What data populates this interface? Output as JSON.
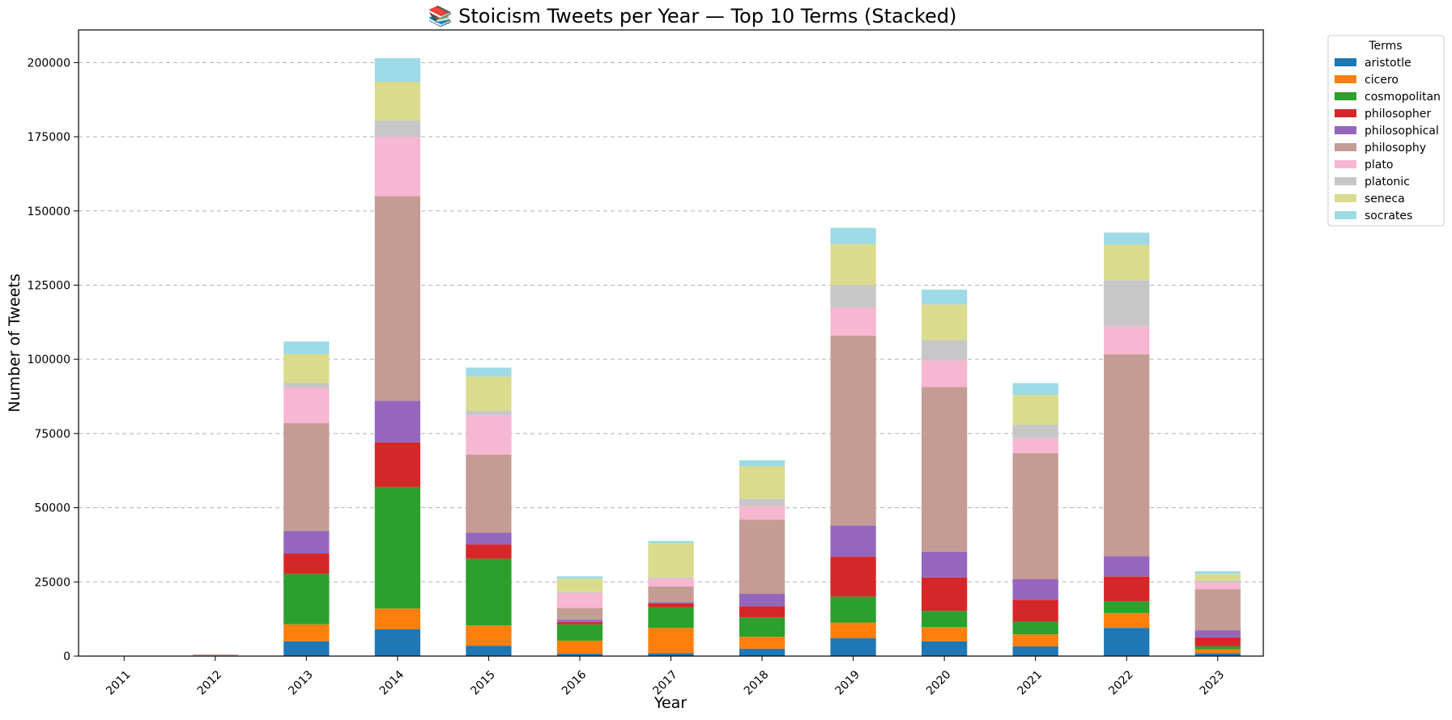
{
  "chart_data": {
    "type": "bar",
    "stacked": true,
    "title": "📚 Stoicism Tweets per Year — Top 10 Terms (Stacked)",
    "xlabel": "Year",
    "ylabel": "Number of Tweets",
    "ylim": [
      0,
      211000
    ],
    "yticks": [
      0,
      25000,
      50000,
      75000,
      100000,
      125000,
      150000,
      175000,
      200000
    ],
    "grid": "y-dashed",
    "legend_title": "Terms",
    "legend_position": "outside-top-right",
    "categories": [
      "2011",
      "2012",
      "2013",
      "2014",
      "2015",
      "2016",
      "2017",
      "2018",
      "2019",
      "2020",
      "2021",
      "2022",
      "2023"
    ],
    "series": [
      {
        "name": "aristotle",
        "color": "#1f77b4",
        "values": [
          0,
          50,
          5000,
          9000,
          3500,
          800,
          1000,
          2500,
          6000,
          5000,
          3300,
          9500,
          1000
        ]
      },
      {
        "name": "cicero",
        "color": "#ff7f0e",
        "values": [
          0,
          50,
          5700,
          7000,
          6800,
          4400,
          8500,
          4000,
          5300,
          4800,
          4000,
          5000,
          1300
        ]
      },
      {
        "name": "cosmopolitan",
        "color": "#2ca02c",
        "values": [
          0,
          20,
          17000,
          41000,
          22500,
          5500,
          7000,
          6500,
          8700,
          5400,
          4200,
          4000,
          1000
        ]
      },
      {
        "name": "philosopher",
        "color": "#d62728",
        "values": [
          0,
          30,
          6900,
          15000,
          4800,
          800,
          1300,
          3800,
          13500,
          11300,
          7500,
          8300,
          3000
        ]
      },
      {
        "name": "philosophical",
        "color": "#9467bd",
        "values": [
          0,
          50,
          7600,
          14000,
          4000,
          800,
          400,
          4200,
          10500,
          8700,
          6900,
          6900,
          2400
        ]
      },
      {
        "name": "philosophy",
        "color": "#c49c94",
        "values": [
          0,
          300,
          36300,
          69000,
          26300,
          3900,
          5300,
          25000,
          64000,
          55500,
          42500,
          68000,
          13800
        ]
      },
      {
        "name": "plato",
        "color": "#f7b6d2",
        "values": [
          0,
          100,
          12000,
          20000,
          13300,
          5100,
          2500,
          4500,
          9500,
          9000,
          5000,
          9500,
          2300
        ]
      },
      {
        "name": "platonic",
        "color": "#c7c7c7",
        "values": [
          0,
          20,
          1500,
          5500,
          1500,
          300,
          500,
          2500,
          7500,
          6800,
          4600,
          15500,
          600
        ]
      },
      {
        "name": "seneca",
        "color": "#dbdb8d",
        "values": [
          0,
          30,
          9800,
          13000,
          11500,
          4500,
          11500,
          11000,
          13800,
          12000,
          10000,
          11900,
          2300
        ]
      },
      {
        "name": "socrates",
        "color": "#9edae5",
        "values": [
          0,
          20,
          4200,
          8000,
          3000,
          800,
          800,
          2000,
          5500,
          5000,
          4000,
          4100,
          900
        ]
      }
    ]
  }
}
